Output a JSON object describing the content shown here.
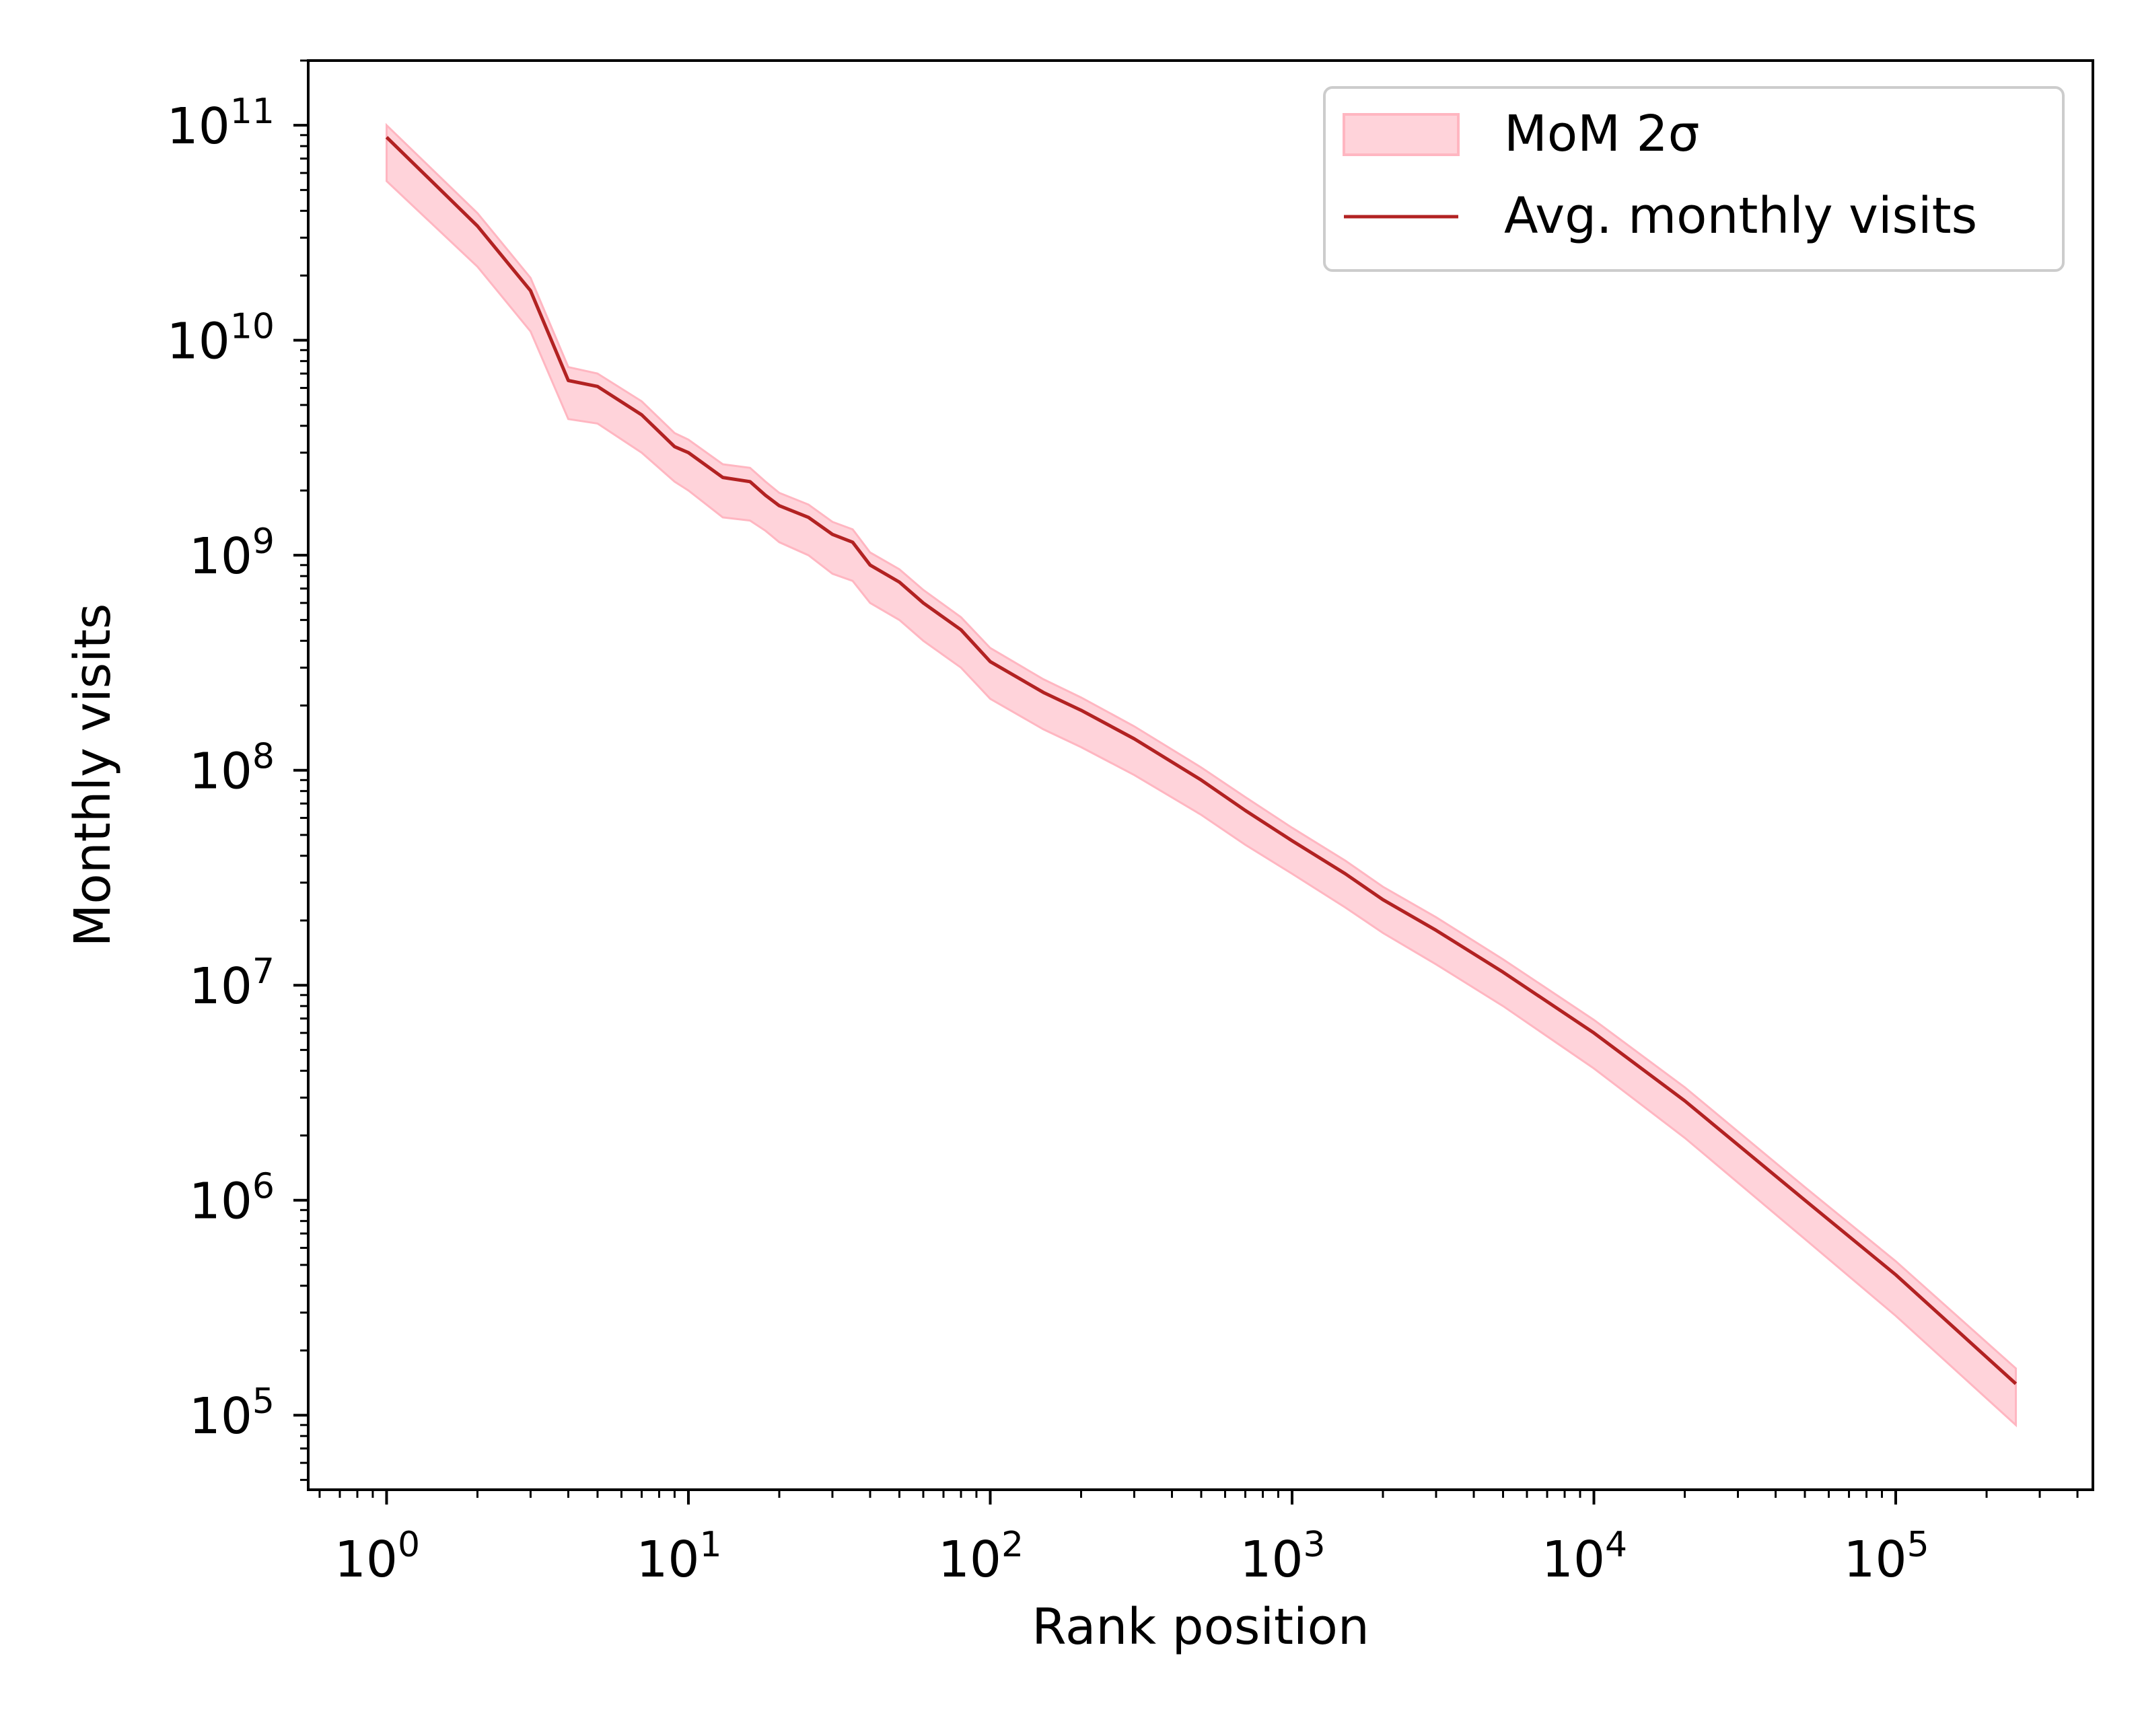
{
  "chart_data": {
    "type": "line",
    "title": "",
    "xlabel": "Rank position",
    "ylabel": "Monthly visits",
    "xscale": "log",
    "yscale": "log",
    "xlim": [
      0.55,
      450000
    ],
    "ylim": [
      45000,
      200000000000
    ],
    "grid": false,
    "legend_position": "top-right",
    "x_ticks": [
      {
        "value": 1,
        "base": "10",
        "exp": "0"
      },
      {
        "value": 10,
        "base": "10",
        "exp": "1"
      },
      {
        "value": 100,
        "base": "10",
        "exp": "2"
      },
      {
        "value": 1000,
        "base": "10",
        "exp": "3"
      },
      {
        "value": 10000,
        "base": "10",
        "exp": "4"
      },
      {
        "value": 100000,
        "base": "10",
        "exp": "5"
      }
    ],
    "y_ticks": [
      {
        "value": 100000,
        "base": "10",
        "exp": "5"
      },
      {
        "value": 1000000,
        "base": "10",
        "exp": "6"
      },
      {
        "value": 10000000,
        "base": "10",
        "exp": "7"
      },
      {
        "value": 100000000,
        "base": "10",
        "exp": "8"
      },
      {
        "value": 1000000000,
        "base": "10",
        "exp": "9"
      },
      {
        "value": 10000000000,
        "base": "10",
        "exp": "10"
      },
      {
        "value": 100000000000,
        "base": "10",
        "exp": "11"
      }
    ],
    "series": [
      {
        "name": "Avg. monthly visits",
        "kind": "line",
        "color": "#b22222",
        "points": [
          [
            1,
            88000000000
          ],
          [
            2,
            34000000000
          ],
          [
            3,
            17000000000
          ],
          [
            4,
            6500000000
          ],
          [
            5,
            6100000000
          ],
          [
            7,
            4500000000
          ],
          [
            9,
            3200000000
          ],
          [
            10,
            3000000000
          ],
          [
            13,
            2300000000
          ],
          [
            16,
            2200000000
          ],
          [
            18,
            1900000000
          ],
          [
            20,
            1700000000
          ],
          [
            25,
            1500000000
          ],
          [
            30,
            1250000000
          ],
          [
            35,
            1150000000
          ],
          [
            40,
            900000000
          ],
          [
            50,
            750000000
          ],
          [
            60,
            600000000
          ],
          [
            80,
            450000000
          ],
          [
            100,
            320000000
          ],
          [
            150,
            230000000
          ],
          [
            200,
            190000000
          ],
          [
            300,
            140000000
          ],
          [
            500,
            90000000
          ],
          [
            700,
            65000000
          ],
          [
            1000,
            47000000
          ],
          [
            1500,
            33000000
          ],
          [
            2000,
            25000000
          ],
          [
            3000,
            18000000
          ],
          [
            5000,
            11500000
          ],
          [
            10000,
            6000000
          ],
          [
            20000,
            2900000
          ],
          [
            50000,
            1000000
          ],
          [
            100000,
            450000
          ],
          [
            250000,
            140000
          ]
        ]
      },
      {
        "name": "MoM 2σ",
        "kind": "band",
        "color": "#ffb6c1",
        "points_lower": [
          [
            1,
            55000000000
          ],
          [
            2,
            22000000000
          ],
          [
            3,
            11000000000
          ],
          [
            4,
            4300000000
          ],
          [
            5,
            4100000000
          ],
          [
            7,
            3000000000
          ],
          [
            9,
            2200000000
          ],
          [
            10,
            2000000000
          ],
          [
            13,
            1500000000
          ],
          [
            16,
            1450000000
          ],
          [
            18,
            1300000000
          ],
          [
            20,
            1150000000
          ],
          [
            25,
            1000000000
          ],
          [
            30,
            820000000
          ],
          [
            35,
            760000000
          ],
          [
            40,
            600000000
          ],
          [
            50,
            500000000
          ],
          [
            60,
            400000000
          ],
          [
            80,
            300000000
          ],
          [
            100,
            215000000
          ],
          [
            150,
            155000000
          ],
          [
            200,
            128000000
          ],
          [
            300,
            95000000
          ],
          [
            500,
            62000000
          ],
          [
            700,
            45000000
          ],
          [
            1000,
            33000000
          ],
          [
            1500,
            23000000
          ],
          [
            2000,
            17500000
          ],
          [
            3000,
            12500000
          ],
          [
            5000,
            8000000
          ],
          [
            10000,
            4100000
          ],
          [
            20000,
            1950000
          ],
          [
            50000,
            660000
          ],
          [
            100000,
            290000
          ],
          [
            250000,
            90000
          ]
        ],
        "points_upper": [
          [
            1,
            100000000000
          ],
          [
            2,
            39000000000
          ],
          [
            3,
            19500000000
          ],
          [
            4,
            7500000000
          ],
          [
            5,
            7000000000
          ],
          [
            7,
            5200000000
          ],
          [
            9,
            3700000000
          ],
          [
            10,
            3450000000
          ],
          [
            13,
            2650000000
          ],
          [
            16,
            2550000000
          ],
          [
            18,
            2200000000
          ],
          [
            20,
            1950000000
          ],
          [
            25,
            1720000000
          ],
          [
            30,
            1430000000
          ],
          [
            35,
            1320000000
          ],
          [
            40,
            1030000000
          ],
          [
            50,
            860000000
          ],
          [
            60,
            690000000
          ],
          [
            80,
            515000000
          ],
          [
            100,
            370000000
          ],
          [
            150,
            265000000
          ],
          [
            200,
            218000000
          ],
          [
            300,
            160000000
          ],
          [
            500,
            103000000
          ],
          [
            700,
            75000000
          ],
          [
            1000,
            54000000
          ],
          [
            1500,
            38000000
          ],
          [
            2000,
            28700000
          ],
          [
            3000,
            20700000
          ],
          [
            5000,
            13200000
          ],
          [
            10000,
            6900000
          ],
          [
            20000,
            3350000
          ],
          [
            50000,
            1150000
          ],
          [
            100000,
            520000
          ],
          [
            250000,
            165000
          ]
        ]
      }
    ],
    "legend": [
      {
        "label": "MoM 2σ",
        "kind": "band",
        "color": "#ffb6c1"
      },
      {
        "label": "Avg. monthly visits",
        "kind": "line",
        "color": "#b22222"
      }
    ]
  }
}
